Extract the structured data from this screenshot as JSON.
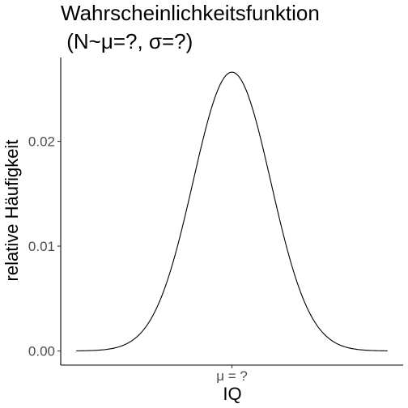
{
  "chart_data": {
    "type": "line",
    "title_line1": "Wahrscheinlichkeitsfunktion",
    "title_line2": " (N~μ=?, σ=?)",
    "xlabel": "IQ",
    "ylabel": "relative Häufigkeit",
    "x_tick_labels": [
      "μ = ?"
    ],
    "y_ticks": [
      0.0,
      0.01,
      0.02
    ],
    "y_tick_labels": [
      "0.00",
      "0.01",
      "0.02"
    ],
    "ylim": [
      -0.00135,
      0.028
    ],
    "grid": false,
    "series": [
      {
        "distribution": "normal",
        "mean": 100,
        "sd": 15,
        "x_range": [
          40,
          160
        ],
        "peak": 0.0266
      }
    ],
    "colors": {
      "line": "#000000",
      "axis": "#000000",
      "tick_text": "#4d4d4d"
    }
  }
}
